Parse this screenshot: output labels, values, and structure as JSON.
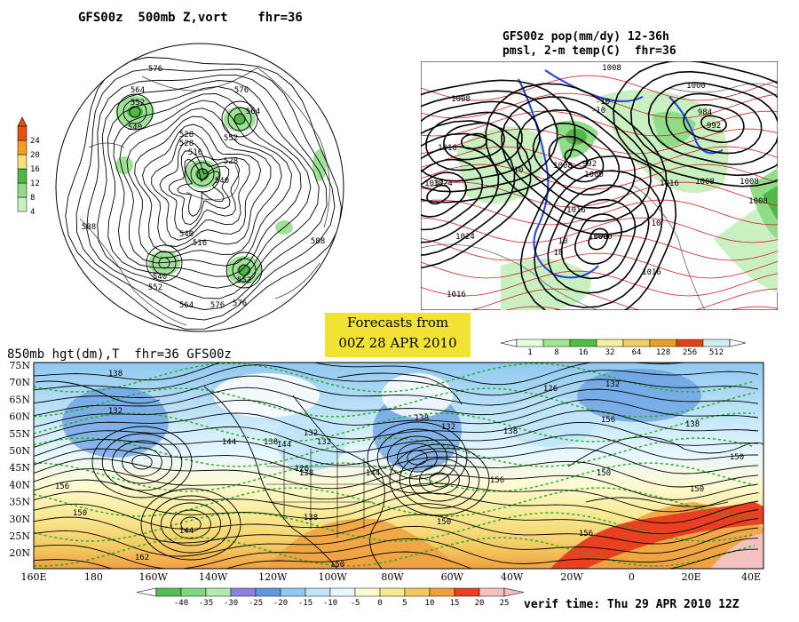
{
  "panels": {
    "top_left_title": "GFS00z  500mb Z,vort    fhr=36",
    "top_right_title_line1": "GFS00z pop(mm/dy) 12-36h",
    "top_right_title_line2": "pmsl, 2-m temp(C)  fhr=36",
    "bottom_title": "850mb hgt(dm),T  fhr=36 GFS00z"
  },
  "banner": {
    "line1": "Forecasts from",
    "line2": "00Z 28 APR 2010"
  },
  "verif_time": "verif time: Thu 29 APR 2010 12Z",
  "vort_colorbar": {
    "colors": [
      "#ffffff",
      "#c8f0c0",
      "#90dc88",
      "#50b848",
      "#f5e07a",
      "#f0a020",
      "#e85010"
    ],
    "labels": [
      "4",
      "8",
      "12",
      "16",
      "20",
      "24"
    ]
  },
  "pop_colorbar": {
    "colors": [
      "#e8ffe0",
      "#a0e890",
      "#50c040",
      "#f5f0a0",
      "#f0d060",
      "#f0a020",
      "#e84010",
      "#d0f0f0"
    ],
    "labels": [
      "1",
      "8",
      "16",
      "32",
      "64",
      "128",
      "256",
      "512"
    ]
  },
  "temp_colorbar": {
    "colors": [
      "#50c050",
      "#80d880",
      "#b0ecb0",
      "#9080e0",
      "#6098e0",
      "#90c8f0",
      "#c0e4f8",
      "#e8f8ff",
      "#fffad0",
      "#f8e890",
      "#f4c860",
      "#f0a040",
      "#e84020",
      "#f4c0c0"
    ],
    "labels": [
      "-40",
      "-35",
      "-30",
      "-25",
      "-20",
      "-15",
      "-10",
      "-5",
      "0",
      "5",
      "10",
      "15",
      "20",
      "25"
    ]
  },
  "bottom_map": {
    "lat_labels": [
      "75N",
      "70N",
      "65N",
      "60N",
      "55N",
      "50N",
      "45N",
      "40N",
      "35N",
      "30N",
      "25N",
      "20N"
    ],
    "lon_labels": [
      "160E",
      "180",
      "160W",
      "140W",
      "120W",
      "100W",
      "80W",
      "60W",
      "40W",
      "20W",
      "0",
      "20E",
      "40E"
    ],
    "height_labels": [
      "138",
      "132",
      "144",
      "138",
      "132",
      "144",
      "138",
      "132",
      "126",
      "144",
      "138",
      "156",
      "150",
      "138",
      "132",
      "138",
      "126",
      "144",
      "150",
      "162",
      "150",
      "156",
      "156",
      "150",
      "150",
      "156",
      "138",
      "132",
      "150"
    ]
  },
  "pmsl_map": {
    "labels": [
      "1008",
      "1016",
      "1024",
      "1032",
      "1024",
      "1016",
      "1008",
      "992",
      "1000",
      "1008",
      "1016",
      "1000",
      "984",
      "992",
      "1000",
      "1008",
      "1016",
      "1008",
      "1016",
      "1000",
      "1008"
    ],
    "temp_labels": [
      "-10",
      "-10",
      "10",
      "10",
      "10",
      "10"
    ]
  },
  "polar_map": {
    "labels": [
      "576",
      "564",
      "552",
      "540",
      "528",
      "516",
      "576",
      "564",
      "552",
      "528",
      "540",
      "516",
      "540",
      "552",
      "564",
      "576",
      "588",
      "588",
      "528",
      "540",
      "552",
      "576"
    ]
  }
}
